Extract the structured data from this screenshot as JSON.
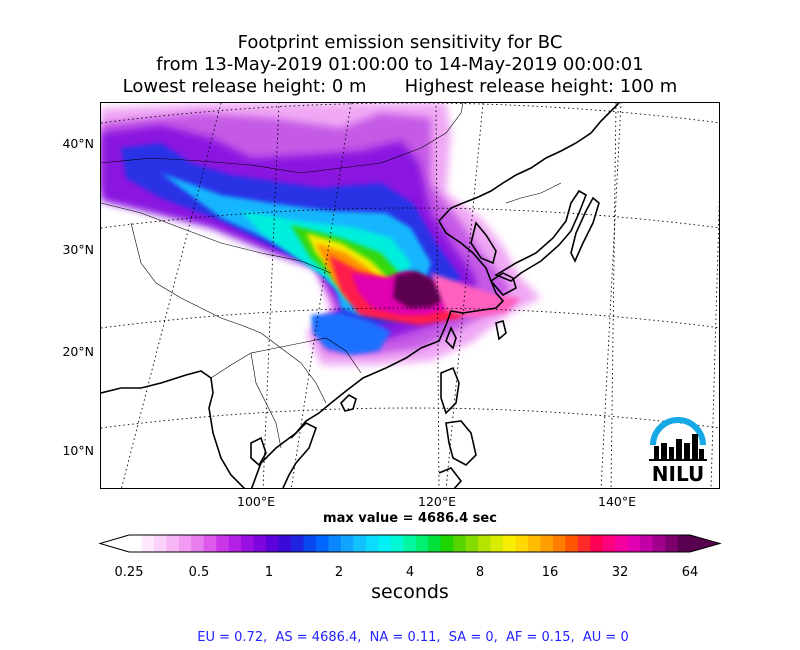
{
  "title": {
    "line1": "Footprint emission sensitivity for BC",
    "line2": "from 13-May-2019 01:00:00 to 14-May-2019 00:00:01",
    "line3_left": "Lowest release height: 0 m",
    "line3_right": "Highest release height: 100 m"
  },
  "map": {
    "lat_labels": [
      "40°N",
      "30°N",
      "20°N",
      "10°N"
    ],
    "lon_labels": [
      "100°E",
      "120°E",
      "140°E"
    ],
    "logo_text": "NILU",
    "max_value_text": "max value = 4686.4 sec"
  },
  "colorbar": {
    "ticks": [
      "0.25",
      "0.5",
      "1",
      "2",
      "4",
      "8",
      "16",
      "32",
      "64"
    ],
    "label": "seconds",
    "colors": [
      "#ffffff",
      "#fde8fd",
      "#fbd2fb",
      "#f6b6f6",
      "#f09bf1",
      "#e87ded",
      "#dc59ea",
      "#c935e7",
      "#b41fe5",
      "#9a10e0",
      "#7c06dd",
      "#5a03da",
      "#3a0ad8",
      "#1e24e2",
      "#0a48ef",
      "#0066ff",
      "#0a86ff",
      "#12a4ff",
      "#12c2ff",
      "#0bdcff",
      "#00f0f6",
      "#00f8d4",
      "#00f8a2",
      "#00f070",
      "#00e13c",
      "#20d400",
      "#55d400",
      "#85dc00",
      "#b4e400",
      "#d9ec00",
      "#f6f000",
      "#ffd800",
      "#ffbc00",
      "#ff9e00",
      "#ff7e00",
      "#ff5500",
      "#ff2a2a",
      "#ff0055",
      "#ff007e",
      "#f5009f",
      "#e000b2",
      "#c300a6",
      "#a1008c",
      "#7d006e",
      "#5a0050"
    ]
  },
  "footer": "EU = 0.72,  AS = 4686.4,  NA = 0.11,  SA = 0,  AF = 0.15,  AU = 0"
}
